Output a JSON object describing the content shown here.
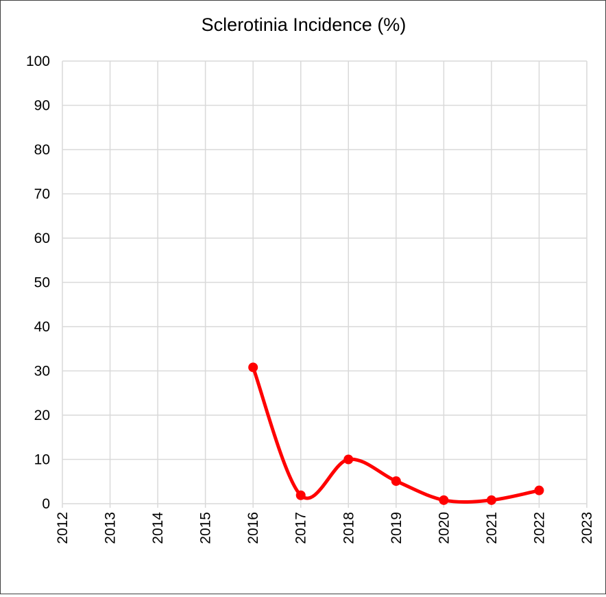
{
  "chart_data": {
    "type": "line",
    "title": "Sclerotinia Incidence (%)",
    "xlabel": "",
    "ylabel": "",
    "x_ticks": [
      "2012",
      "2013",
      "2014",
      "2015",
      "2016",
      "2017",
      "2018",
      "2019",
      "2020",
      "2021",
      "2022",
      "2023"
    ],
    "y_ticks": [
      "0",
      "10",
      "20",
      "30",
      "40",
      "50",
      "60",
      "70",
      "80",
      "90",
      "100"
    ],
    "xlim": [
      2012,
      2023
    ],
    "ylim": [
      0,
      100
    ],
    "grid": true,
    "smooth": true,
    "series": [
      {
        "x": [
          2016,
          2017,
          2018,
          2019,
          2020,
          2021,
          2022
        ],
        "y": [
          30.8,
          1.9,
          10.0,
          5.1,
          0.8,
          0.8,
          3.0
        ],
        "color": "#ff0000",
        "marker": "circle"
      }
    ]
  }
}
